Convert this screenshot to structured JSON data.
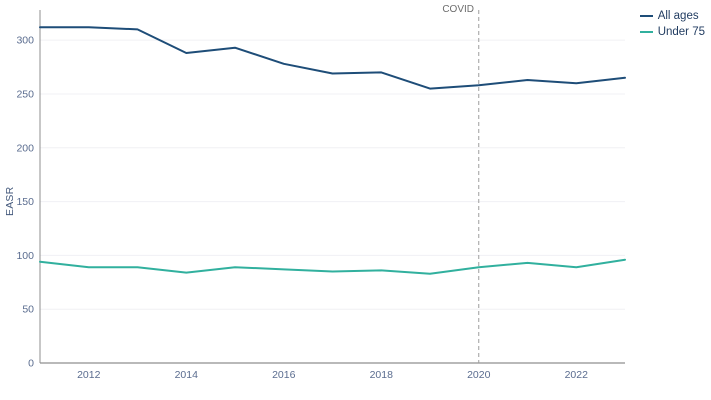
{
  "chart_data": {
    "type": "line",
    "title": "",
    "xlabel": "",
    "ylabel": "EASR",
    "x": [
      2011,
      2012,
      2013,
      2014,
      2015,
      2016,
      2017,
      2018,
      2019,
      2020,
      2021,
      2022,
      2023
    ],
    "series": [
      {
        "name": "All ages",
        "color": "#1e4d78",
        "values": [
          312,
          312,
          310,
          288,
          293,
          278,
          269,
          270,
          255,
          258,
          263,
          260,
          265
        ]
      },
      {
        "name": "Under 75",
        "color": "#31b09e",
        "values": [
          94,
          89,
          89,
          84,
          89,
          87,
          85,
          86,
          83,
          89,
          93,
          89,
          96
        ]
      }
    ],
    "ylim": [
      0,
      328
    ],
    "yticks": [
      0,
      50,
      100,
      150,
      200,
      250,
      300
    ],
    "xticks": [
      2012,
      2014,
      2016,
      2018,
      2020,
      2022
    ],
    "grid": "horizontal",
    "legend_position": "top-right",
    "annotations": [
      {
        "type": "vline",
        "x": 2020,
        "label": "COVID",
        "style": "dashed"
      }
    ]
  },
  "colors": {
    "grid": "#f0f0f4",
    "axis": "#8f8f8f",
    "tick_label": "#5a6c8f",
    "dashed_line": "#9e9e9e",
    "annotation_text": "#6d6d6d",
    "legend_text": "#1f3a5f",
    "background": "#ffffff"
  }
}
